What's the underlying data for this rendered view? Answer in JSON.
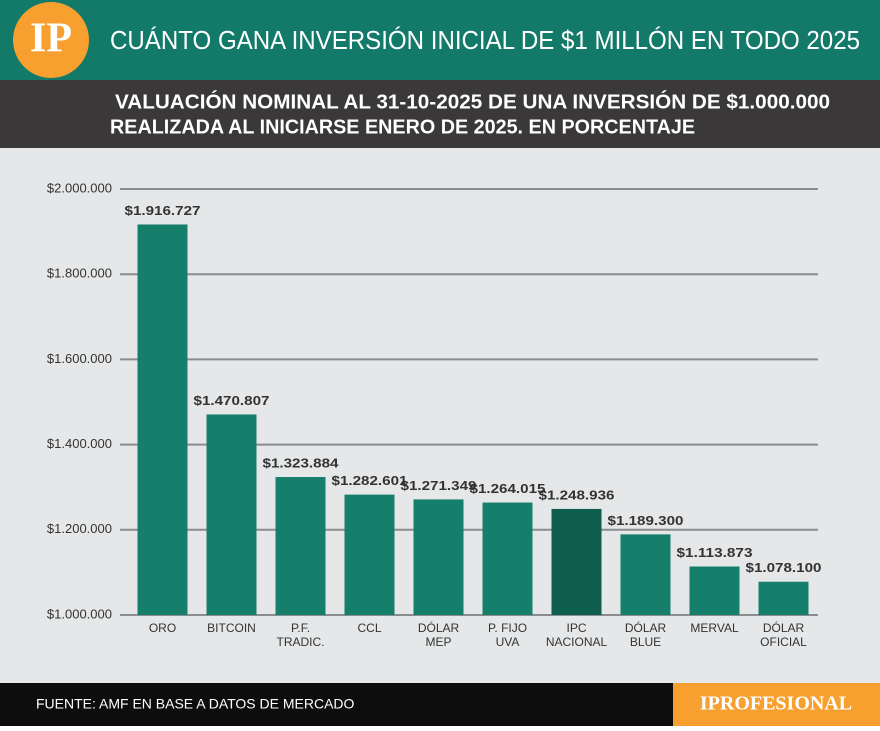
{
  "logo": "IP",
  "footer": {
    "source": "FUENTE: AMF EN BASE A DATOS DE MERCADO",
    "brand": "IPROFESIONAL"
  },
  "chart_data": {
    "type": "bar",
    "title": "CUÁNTO GANA INVERSIÓN INICIAL DE $1 MILLÓN EN TODO 2025",
    "subtitle": [
      "VALUACIÓN NOMINAL AL 31-10-2025 DE UNA INVERSIÓN DE $1.000.000",
      "REALIZADA AL INICIARSE ENERO DE 2025. EN PORCENTAJE"
    ],
    "categories": [
      "ORO",
      "BITCOIN",
      "P.F.\nTRADIC.",
      "CCL",
      "DÓLAR\nMEP",
      "P. FIJO\nUVA",
      "IPC\nNACIONAL",
      "DÓLAR\nBLUE",
      "MERVAL",
      "DÓLAR\nOFICIAL"
    ],
    "values": [
      1916727,
      1470807,
      1323884,
      1282601,
      1271349,
      1264015,
      1248936,
      1189300,
      1113873,
      1078100
    ],
    "value_labels": [
      "$1.916.727",
      "$1.470.807",
      "$1.323.884",
      "$1.282.601",
      "$1.271.349",
      "$1.264.015",
      "$1.248.936",
      "$1.189.300",
      "$1.113.873",
      "$1.078.100"
    ],
    "colors": [
      "#167f6c",
      "#167f6c",
      "#167f6c",
      "#167f6c",
      "#167f6c",
      "#167f6c",
      "#0e5e50",
      "#167f6c",
      "#167f6c",
      "#167f6c"
    ],
    "ylim": [
      1000000,
      2000000
    ],
    "yticks": [
      {
        "value": 1000000,
        "label": "$1.000.000"
      },
      {
        "value": 1200000,
        "label": "$1.200.000"
      },
      {
        "value": 1400000,
        "label": "$1.400.000"
      },
      {
        "value": 1600000,
        "label": "$1.600.000"
      },
      {
        "value": 1800000,
        "label": "$1.800.000"
      },
      {
        "value": 2000000,
        "label": "$2.000.000"
      }
    ],
    "grid": true
  }
}
